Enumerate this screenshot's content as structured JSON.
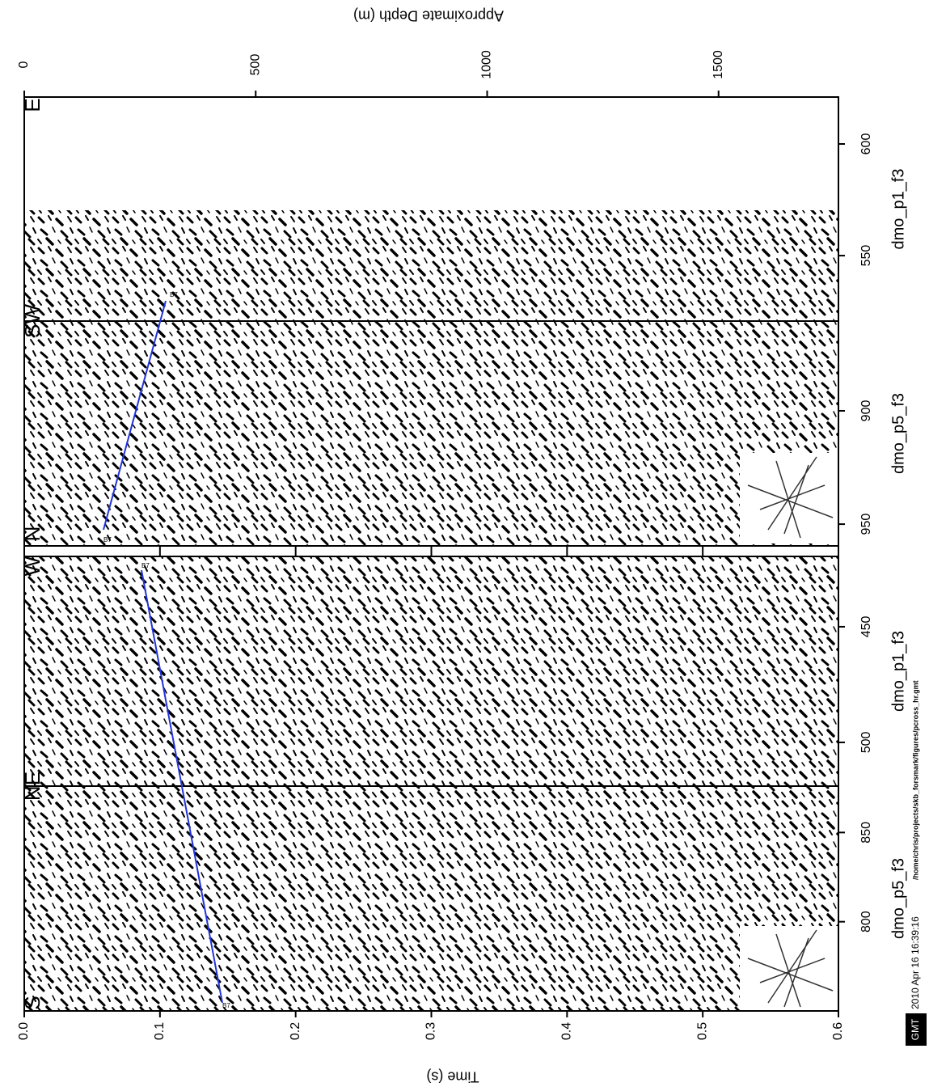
{
  "chart_data": {
    "type": "seismic-section",
    "time_axis": {
      "label": "Time (s)",
      "lim": [
        0,
        0.6
      ],
      "ticks": [
        {
          "value": 0,
          "label": "0.0"
        },
        0.1,
        0.2,
        0.3,
        0.4,
        0.5,
        0.6
      ]
    },
    "depth_axis": {
      "label": "Approximate Depth (m)",
      "lim": [
        0,
        1759
      ],
      "ticks": [
        0,
        500,
        1000,
        1500
      ]
    },
    "horizon": "B7",
    "panels": [
      {
        "labels": [
          "N",
          "SW",
          "E"
        ],
        "segments": [
          {
            "line": "dmo_p5_f3",
            "lim": [
              959.6,
              860.4
            ],
            "ticks": [
              950,
              900
            ]
          },
          {
            "line": "dmo_p1_f3",
            "lim": [
              520.7,
              621
            ],
            "ticks": [
              550,
              600
            ]
          }
        ]
      },
      {
        "labels": [
          "S",
          "NE",
          "W"
        ],
        "segments": [
          {
            "line": "dmo_p5_f3",
            "lim": [
              750,
              876
            ],
            "ticks": [
              800,
              850
            ]
          },
          {
            "line": "dmo_p1_f3",
            "lim": [
              518.9,
              419.6
            ],
            "ticks": [
              500,
              450
            ]
          }
        ]
      }
    ],
    "footer": {
      "logo": "GMT",
      "timestamp": "2010 Apr 16 16:39:16",
      "path": "/home/chris/projects/skb_forsmark/figures/pcross_hr.gmt"
    }
  }
}
